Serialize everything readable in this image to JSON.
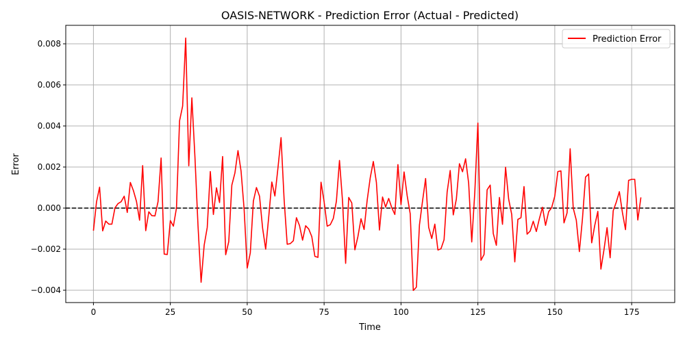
{
  "chart_data": {
    "type": "line",
    "title": "OASIS-NETWORK - Prediction Error (Actual - Predicted)",
    "xlabel": "Time",
    "ylabel": "Error",
    "xlim": [
      -9,
      189
    ],
    "ylim": [
      -0.0046,
      0.0089
    ],
    "xticks": [
      0,
      25,
      50,
      75,
      100,
      125,
      150,
      175
    ],
    "yticks": [
      -0.004,
      -0.002,
      0.0,
      0.002,
      0.004,
      0.006,
      0.008
    ],
    "ytick_labels": [
      "−0.004",
      "−0.002",
      "0.000",
      "0.002",
      "0.004",
      "0.006",
      "0.008"
    ],
    "grid": true,
    "legend_position": "upper-right",
    "reference_line": {
      "y": 0,
      "style": "dashed",
      "color": "#000000"
    },
    "series": [
      {
        "name": "Prediction Error",
        "color": "#ff0000",
        "x": [
          0,
          1,
          2,
          3,
          4,
          5,
          6,
          7,
          8,
          9,
          10,
          11,
          12,
          13,
          14,
          15,
          16,
          17,
          18,
          19,
          20,
          21,
          22,
          23,
          24,
          25,
          26,
          27,
          28,
          29,
          30,
          31,
          32,
          33,
          34,
          35,
          36,
          37,
          38,
          39,
          40,
          41,
          42,
          43,
          44,
          45,
          46,
          47,
          48,
          49,
          50,
          51,
          52,
          53,
          54,
          55,
          56,
          57,
          58,
          59,
          60,
          61,
          62,
          63,
          64,
          65,
          66,
          67,
          68,
          69,
          70,
          71,
          72,
          73,
          74,
          75,
          76,
          77,
          78,
          79,
          80,
          81,
          82,
          83,
          84,
          85,
          86,
          87,
          88,
          89,
          90,
          91,
          92,
          93,
          94,
          95,
          96,
          97,
          98,
          99,
          100,
          101,
          102,
          103,
          104,
          105,
          106,
          107,
          108,
          109,
          110,
          111,
          112,
          113,
          114,
          115,
          116,
          117,
          118,
          119,
          120,
          121,
          122,
          123,
          124,
          125,
          126,
          127,
          128,
          129,
          130,
          131,
          132,
          133,
          134,
          135,
          136,
          137,
          138,
          139,
          140,
          141,
          142,
          143,
          144,
          145,
          146,
          147,
          148,
          149,
          150,
          151,
          152,
          153,
          154,
          155,
          156,
          157,
          158,
          159,
          160,
          161,
          162,
          163,
          164,
          165,
          166,
          167,
          168,
          169,
          170,
          171,
          172,
          173,
          174,
          175,
          176,
          177,
          178
        ],
        "values": [
          -0.0011,
          0.0003,
          0.00102,
          -0.00111,
          -0.00063,
          -0.00078,
          -0.00078,
          1e-05,
          0.00022,
          0.00031,
          0.00058,
          -0.00021,
          0.00125,
          0.00085,
          0.00032,
          -0.00059,
          0.00207,
          -0.0011,
          -0.00018,
          -0.00037,
          -0.00038,
          0.00031,
          0.00244,
          -0.00224,
          -0.00226,
          -0.00061,
          -0.00088,
          1e-05,
          0.00425,
          0.00497,
          0.00828,
          0.00206,
          0.00537,
          0.00249,
          -0.00086,
          -0.00361,
          -0.00181,
          -0.00094,
          0.00178,
          -0.00031,
          0.00099,
          0.00027,
          0.00251,
          -0.00227,
          -0.00163,
          0.00112,
          0.00171,
          0.0028,
          0.0018,
          -7e-05,
          -0.00292,
          -0.00218,
          0.00034,
          0.001,
          0.00058,
          -0.00097,
          -0.002,
          -0.00042,
          0.00127,
          0.00059,
          0.00196,
          0.00343,
          0.00041,
          -0.00176,
          -0.00173,
          -0.00159,
          -0.00047,
          -0.00085,
          -0.00156,
          -0.00086,
          -0.00102,
          -0.00139,
          -0.00235,
          -0.0024,
          0.00126,
          0.00031,
          -0.00088,
          -0.00081,
          -0.0005,
          0.00034,
          0.00232,
          0.00032,
          -0.00269,
          0.00052,
          0.00025,
          -0.00203,
          -0.00138,
          -0.00052,
          -0.00104,
          0.00038,
          0.00148,
          0.00227,
          0.00125,
          -0.00107,
          0.00054,
          5e-05,
          0.00047,
          2e-05,
          -0.00031,
          0.00212,
          0.00017,
          0.00176,
          0.00061,
          -0.00028,
          -0.00401,
          -0.00385,
          -0.00082,
          0.00034,
          0.00144,
          -0.00094,
          -0.00148,
          -0.00078,
          -0.00204,
          -0.00198,
          -0.00154,
          0.00078,
          0.00183,
          -0.00033,
          0.00044,
          0.00216,
          0.00177,
          0.0024,
          0.00121,
          -0.00165,
          0.00078,
          0.00414,
          -0.00254,
          -0.00226,
          0.00089,
          0.00112,
          -0.00124,
          -0.00181,
          0.00052,
          -0.00079,
          0.00199,
          0.00044,
          -0.00031,
          -0.00262,
          -0.00055,
          -0.00047,
          0.00105,
          -0.00127,
          -0.00112,
          -0.00064,
          -0.00114,
          -0.00051,
          4e-05,
          -0.00084,
          -0.00018,
          3e-05,
          0.00058,
          0.00178,
          0.00181,
          -0.00072,
          -0.00023,
          0.00289,
          0.0,
          -0.00059,
          -0.00212,
          -0.00052,
          0.00151,
          0.00166,
          -0.00169,
          -0.00084,
          -0.00016,
          -0.00297,
          -0.00203,
          -0.00095,
          -0.00242,
          -0.00013,
          0.00029,
          0.0008,
          -0.00022,
          -0.00105,
          0.00135,
          0.0014,
          0.0014,
          -0.00058,
          0.00052
        ]
      }
    ]
  }
}
